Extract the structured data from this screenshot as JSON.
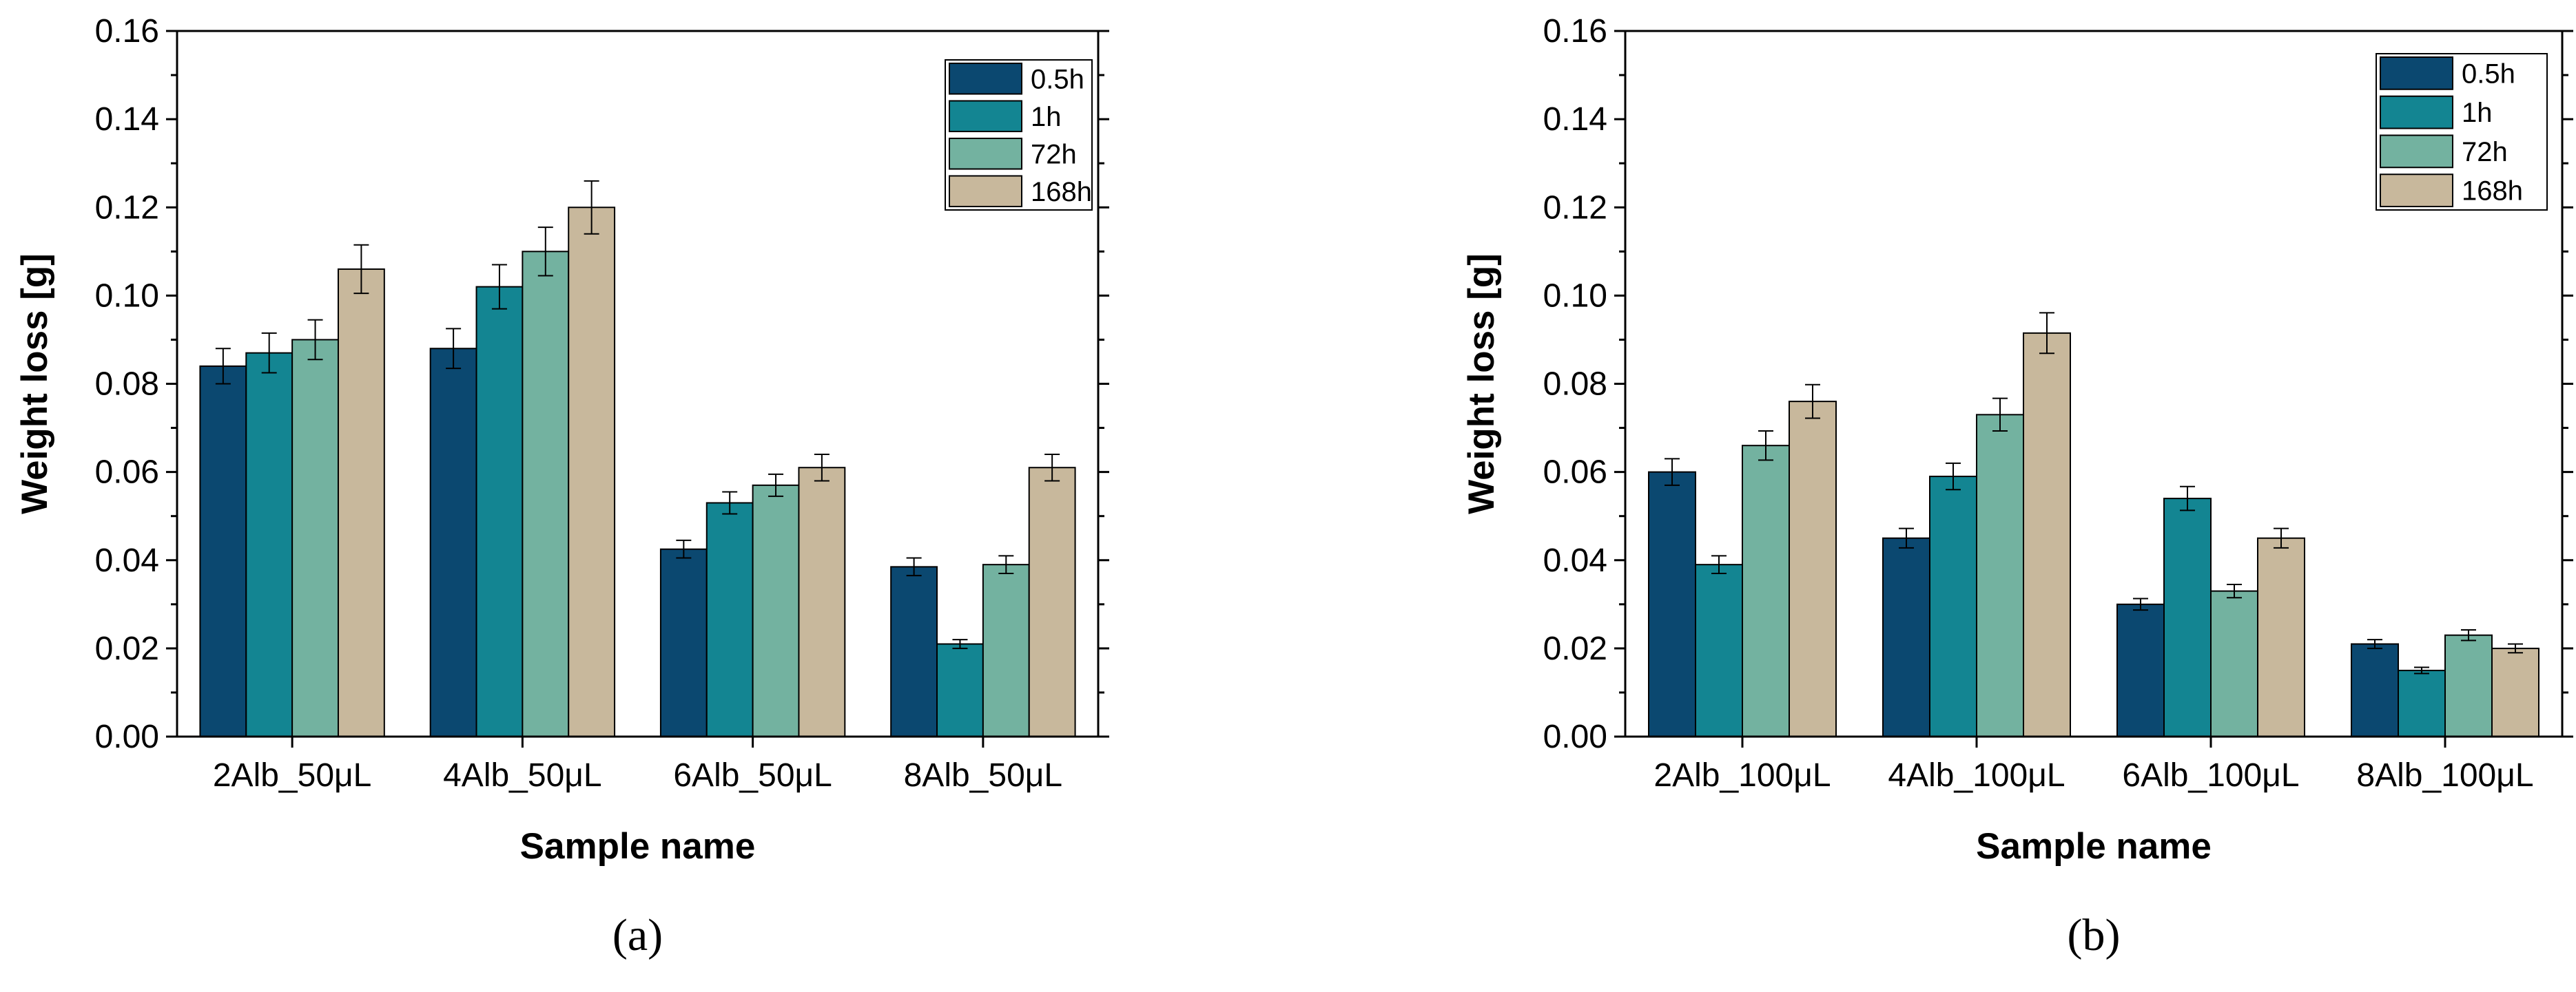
{
  "chart_data": [
    {
      "type": "bar",
      "panel_label": "(a)",
      "xlabel": "Sample name",
      "ylabel": "Weight loss [g]",
      "ylim": [
        0,
        0.16
      ],
      "yticks": [
        "0.00",
        "0.02",
        "0.04",
        "0.06",
        "0.08",
        "0.10",
        "0.12",
        "0.14",
        "0.16"
      ],
      "categories": [
        "2Alb_50μL",
        "4Alb_50μL",
        "6Alb_50μL",
        "8Alb_50μL"
      ],
      "legend_position": "top-right",
      "series": [
        {
          "name": "0.5h",
          "color": "#0b4870",
          "values": [
            0.084,
            0.088,
            0.0425,
            0.0385
          ],
          "errors": [
            0.004,
            0.0045,
            0.002,
            0.002
          ]
        },
        {
          "name": "1h",
          "color": "#138592",
          "values": [
            0.087,
            0.102,
            0.053,
            0.021
          ],
          "errors": [
            0.0045,
            0.005,
            0.0025,
            0.001
          ]
        },
        {
          "name": "72h",
          "color": "#73b2a0",
          "values": [
            0.09,
            0.11,
            0.057,
            0.039
          ],
          "errors": [
            0.0045,
            0.0055,
            0.0025,
            0.002
          ]
        },
        {
          "name": "168h",
          "color": "#c8b89c",
          "values": [
            0.106,
            0.12,
            0.061,
            0.061
          ],
          "errors": [
            0.0055,
            0.006,
            0.003,
            0.003
          ]
        }
      ]
    },
    {
      "type": "bar",
      "panel_label": "(b)",
      "xlabel": "Sample name",
      "ylabel": "Weight loss [g]",
      "ylim": [
        0,
        0.16
      ],
      "yticks": [
        "0.00",
        "0.02",
        "0.04",
        "0.06",
        "0.08",
        "0.10",
        "0.12",
        "0.14",
        "0.16"
      ],
      "categories": [
        "2Alb_100μL",
        "4Alb_100μL",
        "6Alb_100μL",
        "8Alb_100μL"
      ],
      "legend_position": "top-right",
      "series": [
        {
          "name": "0.5h",
          "color": "#0b4870",
          "values": [
            0.06,
            0.045,
            0.03,
            0.021
          ],
          "errors": [
            0.003,
            0.0022,
            0.0013,
            0.001
          ]
        },
        {
          "name": "1h",
          "color": "#138592",
          "values": [
            0.039,
            0.059,
            0.054,
            0.015
          ],
          "errors": [
            0.002,
            0.003,
            0.0027,
            0.0007
          ]
        },
        {
          "name": "72h",
          "color": "#73b2a0",
          "values": [
            0.066,
            0.073,
            0.033,
            0.023
          ],
          "errors": [
            0.0033,
            0.0037,
            0.0015,
            0.0012
          ]
        },
        {
          "name": "168h",
          "color": "#c8b89c",
          "values": [
            0.076,
            0.0915,
            0.045,
            0.02
          ],
          "errors": [
            0.0038,
            0.0046,
            0.0022,
            0.001
          ]
        }
      ]
    }
  ]
}
